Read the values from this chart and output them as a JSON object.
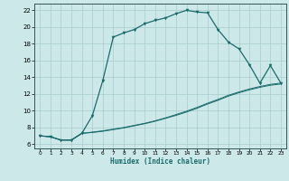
{
  "xlabel": "Humidex (Indice chaleur)",
  "bg_color": "#cce8e8",
  "grid_color": "#a8cccc",
  "line_color": "#1a6b6b",
  "xlim_min": -0.5,
  "xlim_max": 23.5,
  "ylim_min": 5.5,
  "ylim_max": 22.8,
  "xticks": [
    0,
    1,
    2,
    3,
    4,
    5,
    6,
    7,
    8,
    9,
    10,
    11,
    12,
    13,
    14,
    15,
    16,
    17,
    18,
    19,
    20,
    21,
    22,
    23
  ],
  "yticks": [
    6,
    8,
    10,
    12,
    14,
    16,
    18,
    20,
    22
  ],
  "curve1_x": [
    0,
    1,
    2,
    3,
    4,
    5,
    6,
    7,
    8,
    9,
    10,
    11,
    12,
    13,
    14,
    15,
    16,
    17,
    18,
    19,
    20,
    21,
    22,
    23
  ],
  "curve1_y": [
    7.0,
    6.9,
    6.5,
    6.5,
    7.3,
    9.4,
    13.6,
    18.8,
    19.3,
    19.7,
    20.4,
    20.8,
    21.1,
    21.6,
    22.0,
    21.8,
    21.7,
    19.7,
    18.2,
    17.4,
    15.5,
    13.3,
    15.4,
    13.3
  ],
  "curve2_x": [
    0,
    1,
    2,
    3,
    4,
    5,
    6,
    7,
    8,
    9,
    10,
    11,
    12,
    13,
    14,
    15,
    16,
    17,
    18,
    19,
    20,
    21,
    22,
    23
  ],
  "curve2_y": [
    7.0,
    6.9,
    6.5,
    6.5,
    7.3,
    7.45,
    7.6,
    7.8,
    8.0,
    8.25,
    8.5,
    8.8,
    9.15,
    9.55,
    9.95,
    10.4,
    10.9,
    11.35,
    11.85,
    12.25,
    12.6,
    12.9,
    13.15,
    13.3
  ],
  "curve3_x": [
    0,
    1,
    2,
    3,
    4,
    5,
    6,
    7,
    8,
    9,
    10,
    11,
    12,
    13,
    14,
    15,
    16,
    17,
    18,
    19,
    20,
    21,
    22,
    23
  ],
  "curve3_y": [
    7.0,
    6.9,
    6.5,
    6.5,
    7.3,
    7.4,
    7.55,
    7.75,
    7.95,
    8.2,
    8.45,
    8.75,
    9.1,
    9.45,
    9.85,
    10.3,
    10.8,
    11.25,
    11.75,
    12.15,
    12.5,
    12.8,
    13.05,
    13.2
  ]
}
